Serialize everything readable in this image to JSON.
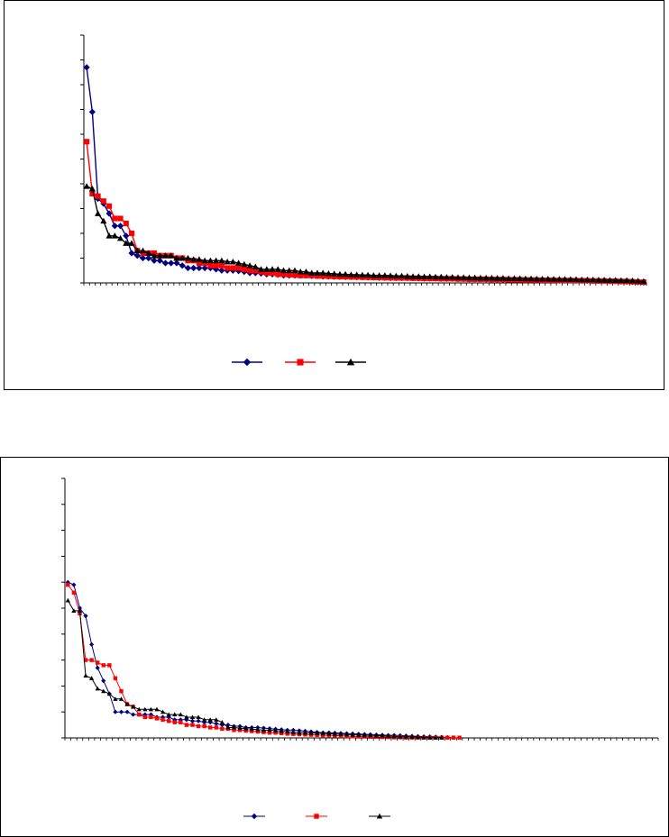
{
  "chart_data": [
    {
      "type": "line",
      "title": "",
      "xlabel": "",
      "ylabel": "",
      "ylim": [
        0,
        100
      ],
      "y_tick_count": 10,
      "x_tick_count": 100,
      "grid": false,
      "legend_placement": "bottom-center",
      "series": [
        {
          "color": "#000080",
          "marker": "diamond",
          "values": [
            87,
            69,
            34,
            32,
            28,
            23,
            23,
            19,
            12,
            11,
            10,
            10,
            9,
            9,
            8,
            8,
            8,
            7,
            6,
            6,
            6,
            6,
            6,
            5.5,
            5,
            5,
            5,
            4.8,
            4.5,
            4,
            4,
            3.8,
            3.5,
            3.5,
            3.3,
            3,
            3,
            3,
            3,
            3,
            2.8,
            2.8,
            2.6,
            2.6,
            2.5,
            2.5,
            2.4,
            2.4,
            2.3,
            2.3,
            2.2,
            2.2,
            2.1,
            2.1,
            2,
            2,
            2,
            2,
            1.9,
            1.9,
            1.8,
            1.8,
            1.8,
            1.7,
            1.7,
            1.7,
            1.6,
            1.6,
            1.5,
            1.5,
            1.5,
            1.4,
            1.4,
            1.4,
            1.3,
            1.3,
            1.3,
            1.2,
            1.2,
            1.2,
            1.1,
            1.1,
            1.1,
            1,
            1,
            1,
            1,
            0.9,
            0.9,
            0.9,
            0.8,
            0.8,
            0.8,
            0.7,
            0.7,
            0.6,
            0.5,
            0.4,
            0.3,
            0.2
          ]
        },
        {
          "color": "#ff0000",
          "marker": "square",
          "values": [
            57,
            36,
            35,
            33,
            31,
            26,
            26,
            24,
            20,
            13,
            12,
            12,
            12,
            11,
            11,
            11,
            10,
            10,
            9,
            9,
            8,
            8,
            7,
            7,
            7,
            6,
            6,
            6,
            5.5,
            5,
            5,
            4.5,
            4,
            4,
            3.5,
            3.5,
            3.3,
            3.2,
            3,
            3,
            3,
            2.8,
            2.8,
            2.7,
            2.6,
            2.5,
            2.5,
            2.4,
            2.4,
            2.3,
            2.3,
            2.2,
            2.2,
            2.1,
            2.1,
            2,
            2,
            2,
            1.9,
            1.9,
            1.8,
            1.8,
            1.8,
            1.7,
            1.7,
            1.7,
            1.6,
            1.6,
            1.5,
            1.5,
            1.5,
            1.5,
            1.4,
            1.4,
            1.4,
            1.3,
            1.3,
            1.3,
            1.2,
            1.2,
            1.2,
            1.1,
            1.1,
            1.1,
            1,
            1,
            1,
            0.9,
            0.9,
            0.9,
            0.8,
            0.8,
            0.8,
            0.7,
            0.7,
            0.6,
            0.6,
            0.5,
            0.4,
            0.3
          ]
        },
        {
          "color": "#000000",
          "marker": "triangle",
          "values": [
            39,
            38,
            28,
            25,
            19,
            19,
            18,
            16,
            16,
            13,
            13,
            12,
            11,
            11,
            11,
            11,
            10,
            10,
            10,
            9.5,
            9.5,
            9,
            9,
            9,
            9,
            8.5,
            8.5,
            8,
            7.5,
            7,
            6.5,
            5.5,
            5.5,
            5.5,
            5.5,
            5,
            5,
            5,
            4.5,
            4.5,
            4,
            4,
            4,
            3.8,
            3.7,
            3.5,
            3.5,
            3.3,
            3.3,
            3.2,
            3.2,
            3,
            3,
            3,
            2.9,
            2.8,
            2.8,
            2.7,
            2.6,
            2.6,
            2.5,
            2.5,
            2.4,
            2.4,
            2.3,
            2.3,
            2.2,
            2.2,
            2.1,
            2.1,
            2,
            2,
            2,
            1.9,
            1.9,
            1.8,
            1.8,
            1.8,
            1.7,
            1.7,
            1.6,
            1.6,
            1.6,
            1.5,
            1.5,
            1.5,
            1.4,
            1.4,
            1.3,
            1.3,
            1.3,
            1.2,
            1.2,
            1.1,
            1.1,
            1,
            1,
            0.9,
            0.8,
            0.6
          ]
        }
      ]
    },
    {
      "type": "line",
      "title": "",
      "xlabel": "",
      "ylabel": "",
      "ylim": [
        0,
        100
      ],
      "y_tick_count": 10,
      "x_tick_count": 100,
      "grid": false,
      "legend_placement": "bottom-center",
      "series": [
        {
          "color": "#000080",
          "marker": "diamond",
          "values": [
            60,
            59,
            50,
            47,
            36,
            27,
            22,
            17,
            10,
            10,
            10,
            9,
            9,
            9,
            9,
            8,
            8,
            8,
            7,
            7,
            7,
            6.5,
            6.5,
            6,
            6,
            5.5,
            5,
            5,
            4.5,
            4.5,
            4,
            4,
            4,
            3.8,
            3.6,
            3.4,
            3.2,
            3,
            3,
            2.8,
            2.6,
            2.4,
            2.2,
            2,
            2,
            1.9,
            1.8,
            1.7,
            1.6,
            1.5,
            1.4,
            1.3,
            1.2,
            1.1,
            1,
            1,
            0.9,
            0.8,
            0.7,
            0.6,
            0.5,
            0.5,
            0.4,
            0.3,
            0.2,
            0.1
          ]
        },
        {
          "color": "#ff0000",
          "marker": "square",
          "values": [
            59,
            56,
            48,
            30,
            30,
            29,
            28,
            28,
            23,
            18,
            13,
            12,
            9,
            8,
            8,
            7.5,
            7,
            6.5,
            6,
            6,
            5,
            5,
            4.5,
            4.5,
            4,
            4,
            3.5,
            3.5,
            3,
            3,
            2.8,
            2.6,
            2.4,
            2.2,
            2,
            2,
            1.8,
            1.6,
            1.5,
            1.4,
            1.3,
            1.2,
            1.1,
            1,
            1,
            0.9,
            0.8,
            0.7,
            0.6,
            0.5,
            0.5,
            0.4,
            0.4,
            0.3,
            0.3,
            0.2,
            0.2,
            0.1,
            0.1,
            0.1,
            0.1,
            0.1,
            0.1,
            0.1,
            0.1,
            0.1,
            0.1
          ]
        },
        {
          "color": "#000000",
          "marker": "triangle",
          "values": [
            53,
            49,
            49,
            24,
            23,
            19,
            18,
            17,
            15,
            15,
            13,
            12,
            11,
            11,
            11,
            11,
            10,
            9,
            9,
            9,
            8,
            8,
            8,
            7,
            7,
            7,
            6,
            4,
            4,
            3.8,
            3.6,
            3.4,
            3.2,
            3,
            3,
            2.8,
            2.6,
            2.4,
            2.2,
            2,
            2,
            1.9,
            1.8,
            1.7,
            1.6,
            1.5,
            1.4,
            1.3,
            1.2,
            1.1,
            1,
            1,
            0.9,
            0.8,
            0.7,
            0.6,
            0.5,
            0.5,
            0.4,
            0.3,
            0.2,
            0.1,
            0.1,
            0.1
          ]
        }
      ]
    }
  ]
}
